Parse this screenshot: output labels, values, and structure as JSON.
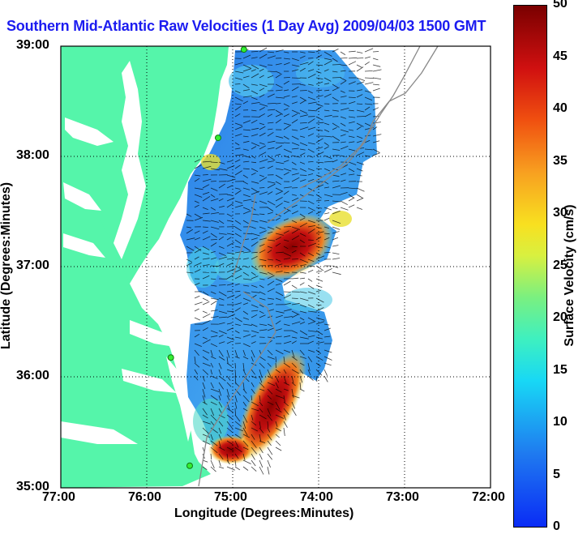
{
  "title": "Southern Mid-Atlantic Raw Velocities (1 Day Avg) 2009/04/03 1500 GMT",
  "xlabel": "Longitude (Degrees:Minutes)",
  "ylabel": "Latitude (Degrees:Minutes)",
  "x_ticks": [
    "77:00",
    "76:00",
    "75:00",
    "74:00",
    "73:00",
    "72:00"
  ],
  "y_ticks": [
    "39:00",
    "38:00",
    "37:00",
    "36:00",
    "35:00"
  ],
  "colorbar": {
    "label": "Surface Velocity (cm/s)",
    "ticks": [
      "50",
      "45",
      "40",
      "35",
      "30",
      "25",
      "20",
      "15",
      "10",
      "5",
      "0"
    ],
    "min": 0,
    "max": 50
  },
  "colors": {
    "land": "#55f5aa",
    "title": "#1c1cf0",
    "grid": "#000000"
  },
  "stations": [
    {
      "lon": 74.87,
      "lat": 38.97
    },
    {
      "lon": 75.17,
      "lat": 38.17
    },
    {
      "lon": 75.72,
      "lat": 36.18
    },
    {
      "lon": 75.5,
      "lat": 35.2
    }
  ]
}
